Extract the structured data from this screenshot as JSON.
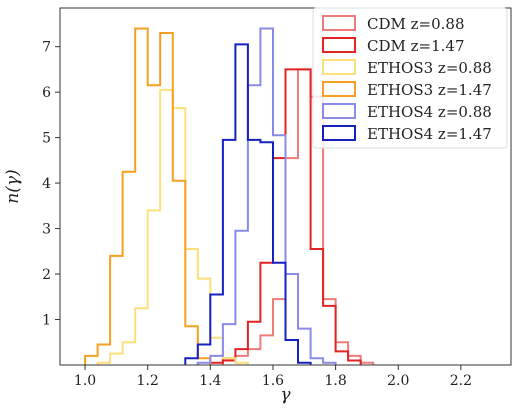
{
  "chart_data": {
    "type": "histogram",
    "xlabel": "γ",
    "ylabel": "n(γ)",
    "xlim": [
      0.92,
      2.36
    ],
    "ylim": [
      0,
      7.85
    ],
    "xticks": [
      1.0,
      1.2,
      1.4,
      1.6,
      1.8,
      2.0,
      2.2
    ],
    "xtick_labels": [
      "1.0",
      "1.2",
      "1.4",
      "1.6",
      "1.8",
      "2.0",
      "2.2"
    ],
    "yticks": [
      1,
      2,
      3,
      4,
      5,
      6,
      7
    ],
    "ytick_labels": [
      "1",
      "2",
      "3",
      "4",
      "5",
      "6",
      "7"
    ],
    "grid": false,
    "legend_position": "top-right",
    "series": [
      {
        "name": "CDM z=0.88",
        "color": "#f07b7b",
        "bin_edges": [
          1.44,
          1.48,
          1.52,
          1.56,
          1.6,
          1.64,
          1.68,
          1.72,
          1.76,
          1.8,
          1.84,
          1.88,
          1.92
        ],
        "values": [
          0.15,
          0.2,
          0.35,
          0.65,
          1.45,
          4.55,
          6.5,
          5.9,
          1.45,
          0.5,
          0.2,
          0.05
        ]
      },
      {
        "name": "CDM z=1.47",
        "color": "#e02424",
        "bin_edges": [
          1.4,
          1.44,
          1.48,
          1.52,
          1.56,
          1.6,
          1.64,
          1.68,
          1.72,
          1.76,
          1.8,
          1.84,
          1.88
        ],
        "values": [
          0.05,
          0.1,
          0.35,
          0.95,
          2.25,
          4.55,
          6.5,
          6.5,
          2.55,
          1.3,
          0.3,
          0.1
        ]
      },
      {
        "name": "ETHOS3 z=0.88",
        "color": "#fde07a",
        "bin_edges": [
          1.04,
          1.08,
          1.12,
          1.16,
          1.2,
          1.24,
          1.28,
          1.32,
          1.36,
          1.4,
          1.44,
          1.48,
          1.52
        ],
        "values": [
          0.05,
          0.25,
          0.5,
          1.25,
          3.4,
          6.05,
          5.65,
          2.55,
          1.9,
          0.6,
          0.15,
          0.05
        ]
      },
      {
        "name": "ETHOS3 z=1.47",
        "color": "#f5a020",
        "bin_edges": [
          1.0,
          1.04,
          1.08,
          1.12,
          1.16,
          1.2,
          1.24,
          1.28,
          1.32,
          1.36,
          1.4
        ],
        "values": [
          0.2,
          0.45,
          2.4,
          4.25,
          7.4,
          6.15,
          7.3,
          4.05,
          0.85,
          0.15
        ]
      },
      {
        "name": "ETHOS4 z=0.88",
        "color": "#8a8ae8",
        "bin_edges": [
          1.36,
          1.4,
          1.44,
          1.48,
          1.52,
          1.56,
          1.6,
          1.64,
          1.68,
          1.72,
          1.76,
          1.8
        ],
        "values": [
          0.05,
          0.2,
          0.9,
          2.95,
          6.15,
          7.4,
          5.05,
          2.0,
          0.8,
          0.15,
          0.05
        ]
      },
      {
        "name": "ETHOS4 z=1.47",
        "color": "#1620c0",
        "bin_edges": [
          1.32,
          1.36,
          1.4,
          1.44,
          1.48,
          1.52,
          1.56,
          1.6,
          1.64,
          1.68,
          1.72
        ],
        "values": [
          0.15,
          0.45,
          1.55,
          4.95,
          7.05,
          4.95,
          4.9,
          2.25,
          0.55,
          0.05
        ]
      }
    ]
  }
}
